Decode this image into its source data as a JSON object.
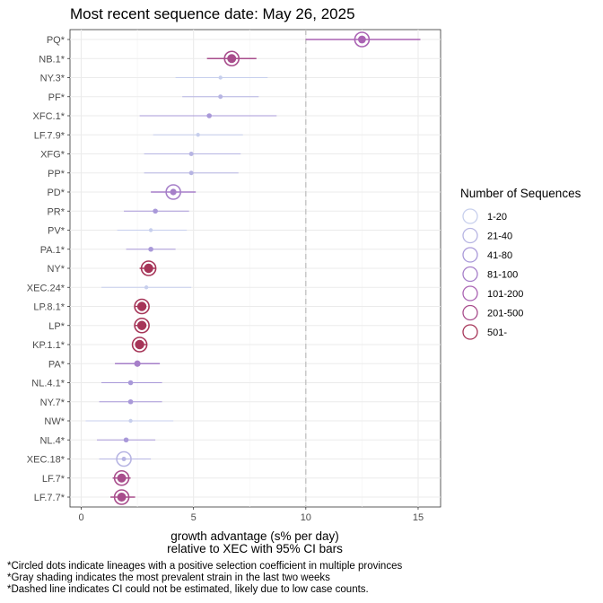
{
  "footnotes": [
    "*Circled dots indicate lineages with a positive selection coefficient in multiple provinces",
    "*Gray shading indicates the most prevalent strain in the last two weeks",
    "*Dashed line indicates CI could not be estimated, likely due to low case counts."
  ],
  "chart_data": {
    "type": "scatter",
    "subtype": "dot-and-whisker",
    "title": "Most recent sequence date: May 26, 2025",
    "xlabel": "growth advantage (s% per day)",
    "xlabel2": "relative to  XEC  with 95% CI bars",
    "ylabel": "",
    "xlim": [
      -0.5,
      16
    ],
    "xticks": [
      0,
      5,
      10,
      15
    ],
    "reference_line_x": 10,
    "reference_line_style": "dashed",
    "grid": true,
    "legend_title": "Number of Sequences",
    "legend_position": "right",
    "legend": [
      {
        "label": "1-20",
        "color": "#c7cfed"
      },
      {
        "label": "21-40",
        "color": "#b7b5e3"
      },
      {
        "label": "41-80",
        "color": "#a999d9"
      },
      {
        "label": "81-100",
        "color": "#a67fc9"
      },
      {
        "label": "101-200",
        "color": "#aa63b3"
      },
      {
        "label": "201-500",
        "color": "#a84d8c"
      },
      {
        "label": "501-",
        "color": "#a63558"
      }
    ],
    "lineages": [
      {
        "name": "PQ*",
        "value": 12.5,
        "ci": [
          10.0,
          15.1
        ],
        "bin": 4,
        "circled": true
      },
      {
        "name": "NB.1*",
        "value": 6.7,
        "ci": [
          5.6,
          7.8
        ],
        "bin": 5,
        "circled": true
      },
      {
        "name": "NY.3*",
        "value": 6.2,
        "ci": [
          4.2,
          8.3
        ],
        "bin": 0,
        "circled": false
      },
      {
        "name": "PF*",
        "value": 6.2,
        "ci": [
          4.5,
          7.9
        ],
        "bin": 1,
        "circled": false
      },
      {
        "name": "XFC.1*",
        "value": 5.7,
        "ci": [
          2.6,
          8.7
        ],
        "bin": 2,
        "circled": false
      },
      {
        "name": "LF.7.9*",
        "value": 5.2,
        "ci": [
          3.2,
          7.2
        ],
        "bin": 0,
        "circled": false
      },
      {
        "name": "XFG*",
        "value": 4.9,
        "ci": [
          2.8,
          7.1
        ],
        "bin": 1,
        "circled": false
      },
      {
        "name": "PP*",
        "value": 4.9,
        "ci": [
          2.8,
          7.0
        ],
        "bin": 1,
        "circled": false
      },
      {
        "name": "PD*",
        "value": 4.1,
        "ci": [
          3.1,
          5.1
        ],
        "bin": 3,
        "circled": true
      },
      {
        "name": "PR*",
        "value": 3.3,
        "ci": [
          1.9,
          4.8
        ],
        "bin": 2,
        "circled": false
      },
      {
        "name": "PV*",
        "value": 3.1,
        "ci": [
          1.6,
          4.7
        ],
        "bin": 0,
        "circled": false
      },
      {
        "name": "PA.1*",
        "value": 3.1,
        "ci": [
          2.0,
          4.2
        ],
        "bin": 2,
        "circled": false
      },
      {
        "name": "NY*",
        "value": 3.0,
        "ci": [
          2.6,
          3.3
        ],
        "bin": 6,
        "circled": true
      },
      {
        "name": "XEC.24*",
        "value": 2.9,
        "ci": [
          0.9,
          4.9
        ],
        "bin": 0,
        "circled": false
      },
      {
        "name": "LP.8.1*",
        "value": 2.7,
        "ci": [
          2.4,
          2.9
        ],
        "bin": 6,
        "circled": true
      },
      {
        "name": "LP*",
        "value": 2.7,
        "ci": [
          2.4,
          2.9
        ],
        "bin": 6,
        "circled": true
      },
      {
        "name": "KP.1.1*",
        "value": 2.6,
        "ci": [
          2.4,
          2.9
        ],
        "bin": 6,
        "circled": true
      },
      {
        "name": "PA*",
        "value": 2.5,
        "ci": [
          1.5,
          3.5
        ],
        "bin": 3,
        "circled": false
      },
      {
        "name": "NL.4.1*",
        "value": 2.2,
        "ci": [
          0.9,
          3.6
        ],
        "bin": 2,
        "circled": false
      },
      {
        "name": "NY.7*",
        "value": 2.2,
        "ci": [
          0.8,
          3.6
        ],
        "bin": 2,
        "circled": false
      },
      {
        "name": "NW*",
        "value": 2.2,
        "ci": [
          0.2,
          4.1
        ],
        "bin": 0,
        "circled": false
      },
      {
        "name": "NL.4*",
        "value": 2.0,
        "ci": [
          0.7,
          3.3
        ],
        "bin": 2,
        "circled": false
      },
      {
        "name": "XEC.18*",
        "value": 1.9,
        "ci": [
          0.8,
          3.1
        ],
        "bin": 1,
        "circled": true
      },
      {
        "name": "LF.7*",
        "value": 1.8,
        "ci": [
          1.4,
          2.2
        ],
        "bin": 5,
        "circled": true
      },
      {
        "name": "LF.7.7*",
        "value": 1.8,
        "ci": [
          1.3,
          2.4
        ],
        "bin": 5,
        "circled": true
      }
    ]
  }
}
